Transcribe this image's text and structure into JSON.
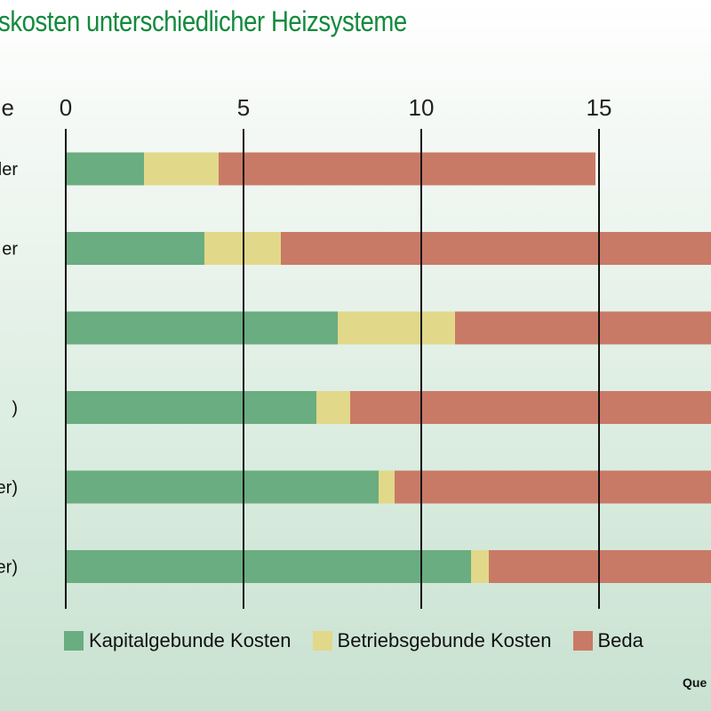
{
  "chart_data": {
    "type": "bar",
    "orientation": "horizontal",
    "stacked": true,
    "title": "skosten unterschiedlicher Heizsysteme",
    "axis_label_fragment": "e",
    "x_ticks": [
      "0",
      "5",
      "10",
      "15"
    ],
    "xlim": [
      0,
      18.15
    ],
    "grid": true,
    "categories": [
      "iler",
      "er",
      "",
      ")",
      "sser)",
      "sser)"
    ],
    "series": [
      {
        "name": "Kapitalgebunde Kosten",
        "color": "#6aad80",
        "values": [
          2.2,
          3.9,
          7.65,
          7.05,
          8.8,
          11.4
        ]
      },
      {
        "name": "Betriebsgebunde Kosten",
        "color": "#e2d889",
        "values": [
          2.1,
          2.15,
          3.3,
          0.95,
          0.45,
          0.5
        ]
      },
      {
        "name": "Beda",
        "color": "#c97a66",
        "values": [
          10.6,
          12.1,
          7.2,
          10.2,
          8.9,
          6.25
        ]
      }
    ],
    "legend_position": "bottom",
    "source_fragment": "Que"
  }
}
